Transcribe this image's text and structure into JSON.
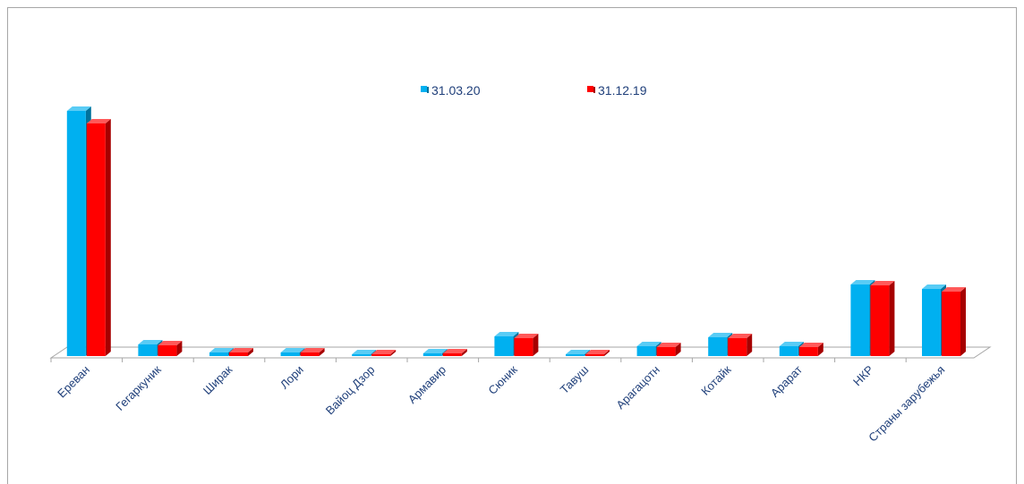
{
  "chart_data": {
    "type": "bar",
    "style": "3d-clustered-column",
    "categories": [
      "Ереван",
      "Гегаркуник",
      "Ширак",
      "Лори",
      "Вайоц Дзор",
      "Армавир",
      "Сюник",
      "Тавуш",
      "Арагацотн",
      "Котайк",
      "Арарат",
      "НКР",
      "Страны зарубежья"
    ],
    "series": [
      {
        "name": "31.03.20",
        "color": "#00b0f0",
        "values": [
          274,
          13,
          4,
          4,
          1,
          3,
          22,
          2,
          11,
          21,
          11,
          80,
          75
        ]
      },
      {
        "name": "31.12.19",
        "color": "#ff0000",
        "values": [
          260,
          12,
          4,
          4,
          1,
          3,
          20,
          2,
          10,
          20,
          10,
          79,
          72
        ]
      }
    ],
    "ylim": [
      0,
      280
    ],
    "grid": false,
    "legend_position": "top-center",
    "y_tick_labels": "none"
  }
}
